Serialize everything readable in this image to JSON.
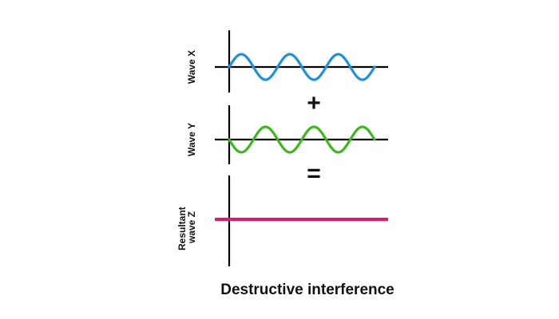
{
  "panels": [
    {
      "label_lines": [
        "Wave X"
      ],
      "kind": "sine",
      "phase": "positive",
      "cycles": 3,
      "color": "#1e90dc"
    },
    {
      "label_lines": [
        "Wave Y"
      ],
      "kind": "sine",
      "phase": "negative",
      "cycles": 3,
      "color": "#3cb81e"
    },
    {
      "label_lines": [
        "Resultant",
        "wave Z"
      ],
      "kind": "flat",
      "color": "#e6156e"
    }
  ],
  "operators": [
    "+",
    "="
  ],
  "caption": "Destructive interference",
  "axis_color": "#000000"
}
